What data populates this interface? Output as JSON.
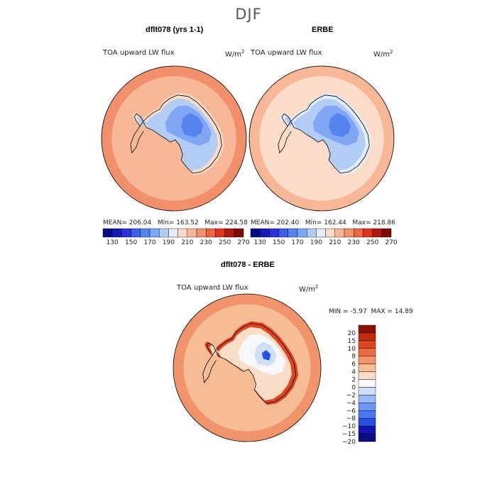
{
  "figure": {
    "title": "DJF"
  },
  "chart_data": [
    {
      "type": "heatmap",
      "title": "dflt078 (yrs 1-1)",
      "field_label": "TOA upward LW flux",
      "units_base": "W/m",
      "units_exp": "2",
      "projection": "south polar stereographic",
      "stats": {
        "mean_label": "MEAN=",
        "mean": "206.04",
        "min_label": "Min=",
        "min": "163.52",
        "max_label": "Max=",
        "max": "224.58"
      },
      "regions": {
        "ocean": 215,
        "outer_ring": 222,
        "coast": 200,
        "interior_1": 188,
        "interior_2": 178,
        "interior_3": 168
      },
      "colorbar": {
        "levels": [
          130,
          140,
          150,
          160,
          170,
          180,
          190,
          200,
          210,
          220,
          230,
          240,
          250,
          260,
          270
        ],
        "tick_labels": [
          "130",
          "150",
          "170",
          "190",
          "210",
          "230",
          "250",
          "270"
        ]
      }
    },
    {
      "type": "heatmap",
      "title": "ERBE",
      "field_label": "TOA upward LW flux",
      "units_base": "W/m",
      "units_exp": "2",
      "projection": "south polar stereographic",
      "stats": {
        "mean_label": "MEAN=",
        "mean": "202.40",
        "min_label": "Min=",
        "min": "162.44",
        "max_label": "Max=",
        "max": "218.86"
      },
      "regions": {
        "ocean": 205,
        "outer_ring": 215,
        "coast": 195,
        "interior_1": 188,
        "interior_2": 178,
        "interior_3": 168
      },
      "colorbar": {
        "levels": [
          130,
          140,
          150,
          160,
          170,
          180,
          190,
          200,
          210,
          220,
          230,
          240,
          250,
          260,
          270
        ],
        "tick_labels": [
          "130",
          "150",
          "170",
          "190",
          "210",
          "230",
          "250",
          "270"
        ]
      }
    },
    {
      "type": "heatmap",
      "title": "dflt078 - ERBE",
      "field_label": "TOA upward LW flux",
      "units_base": "W/m",
      "units_exp": "2",
      "projection": "south polar stereographic",
      "stats": {
        "min_label": "MIN =",
        "min": "-5.97",
        "max_label": "MAX =",
        "max": "14.89"
      },
      "regions": {
        "ocean": 3,
        "outer_ring": 5,
        "coast": 9,
        "interior_1": 1,
        "interior_2": -1,
        "interior_3": -3
      },
      "colorbar": {
        "levels": [
          -20,
          -15,
          -10,
          -8,
          -6,
          -4,
          -2,
          0,
          2,
          4,
          6,
          8,
          10,
          15,
          20
        ],
        "tick_labels": [
          "20",
          "15",
          "10",
          "8",
          "6",
          "4",
          "2",
          "0",
          "−2",
          "−4",
          "−6",
          "−8",
          "−10",
          "−15",
          "−20"
        ]
      }
    }
  ]
}
